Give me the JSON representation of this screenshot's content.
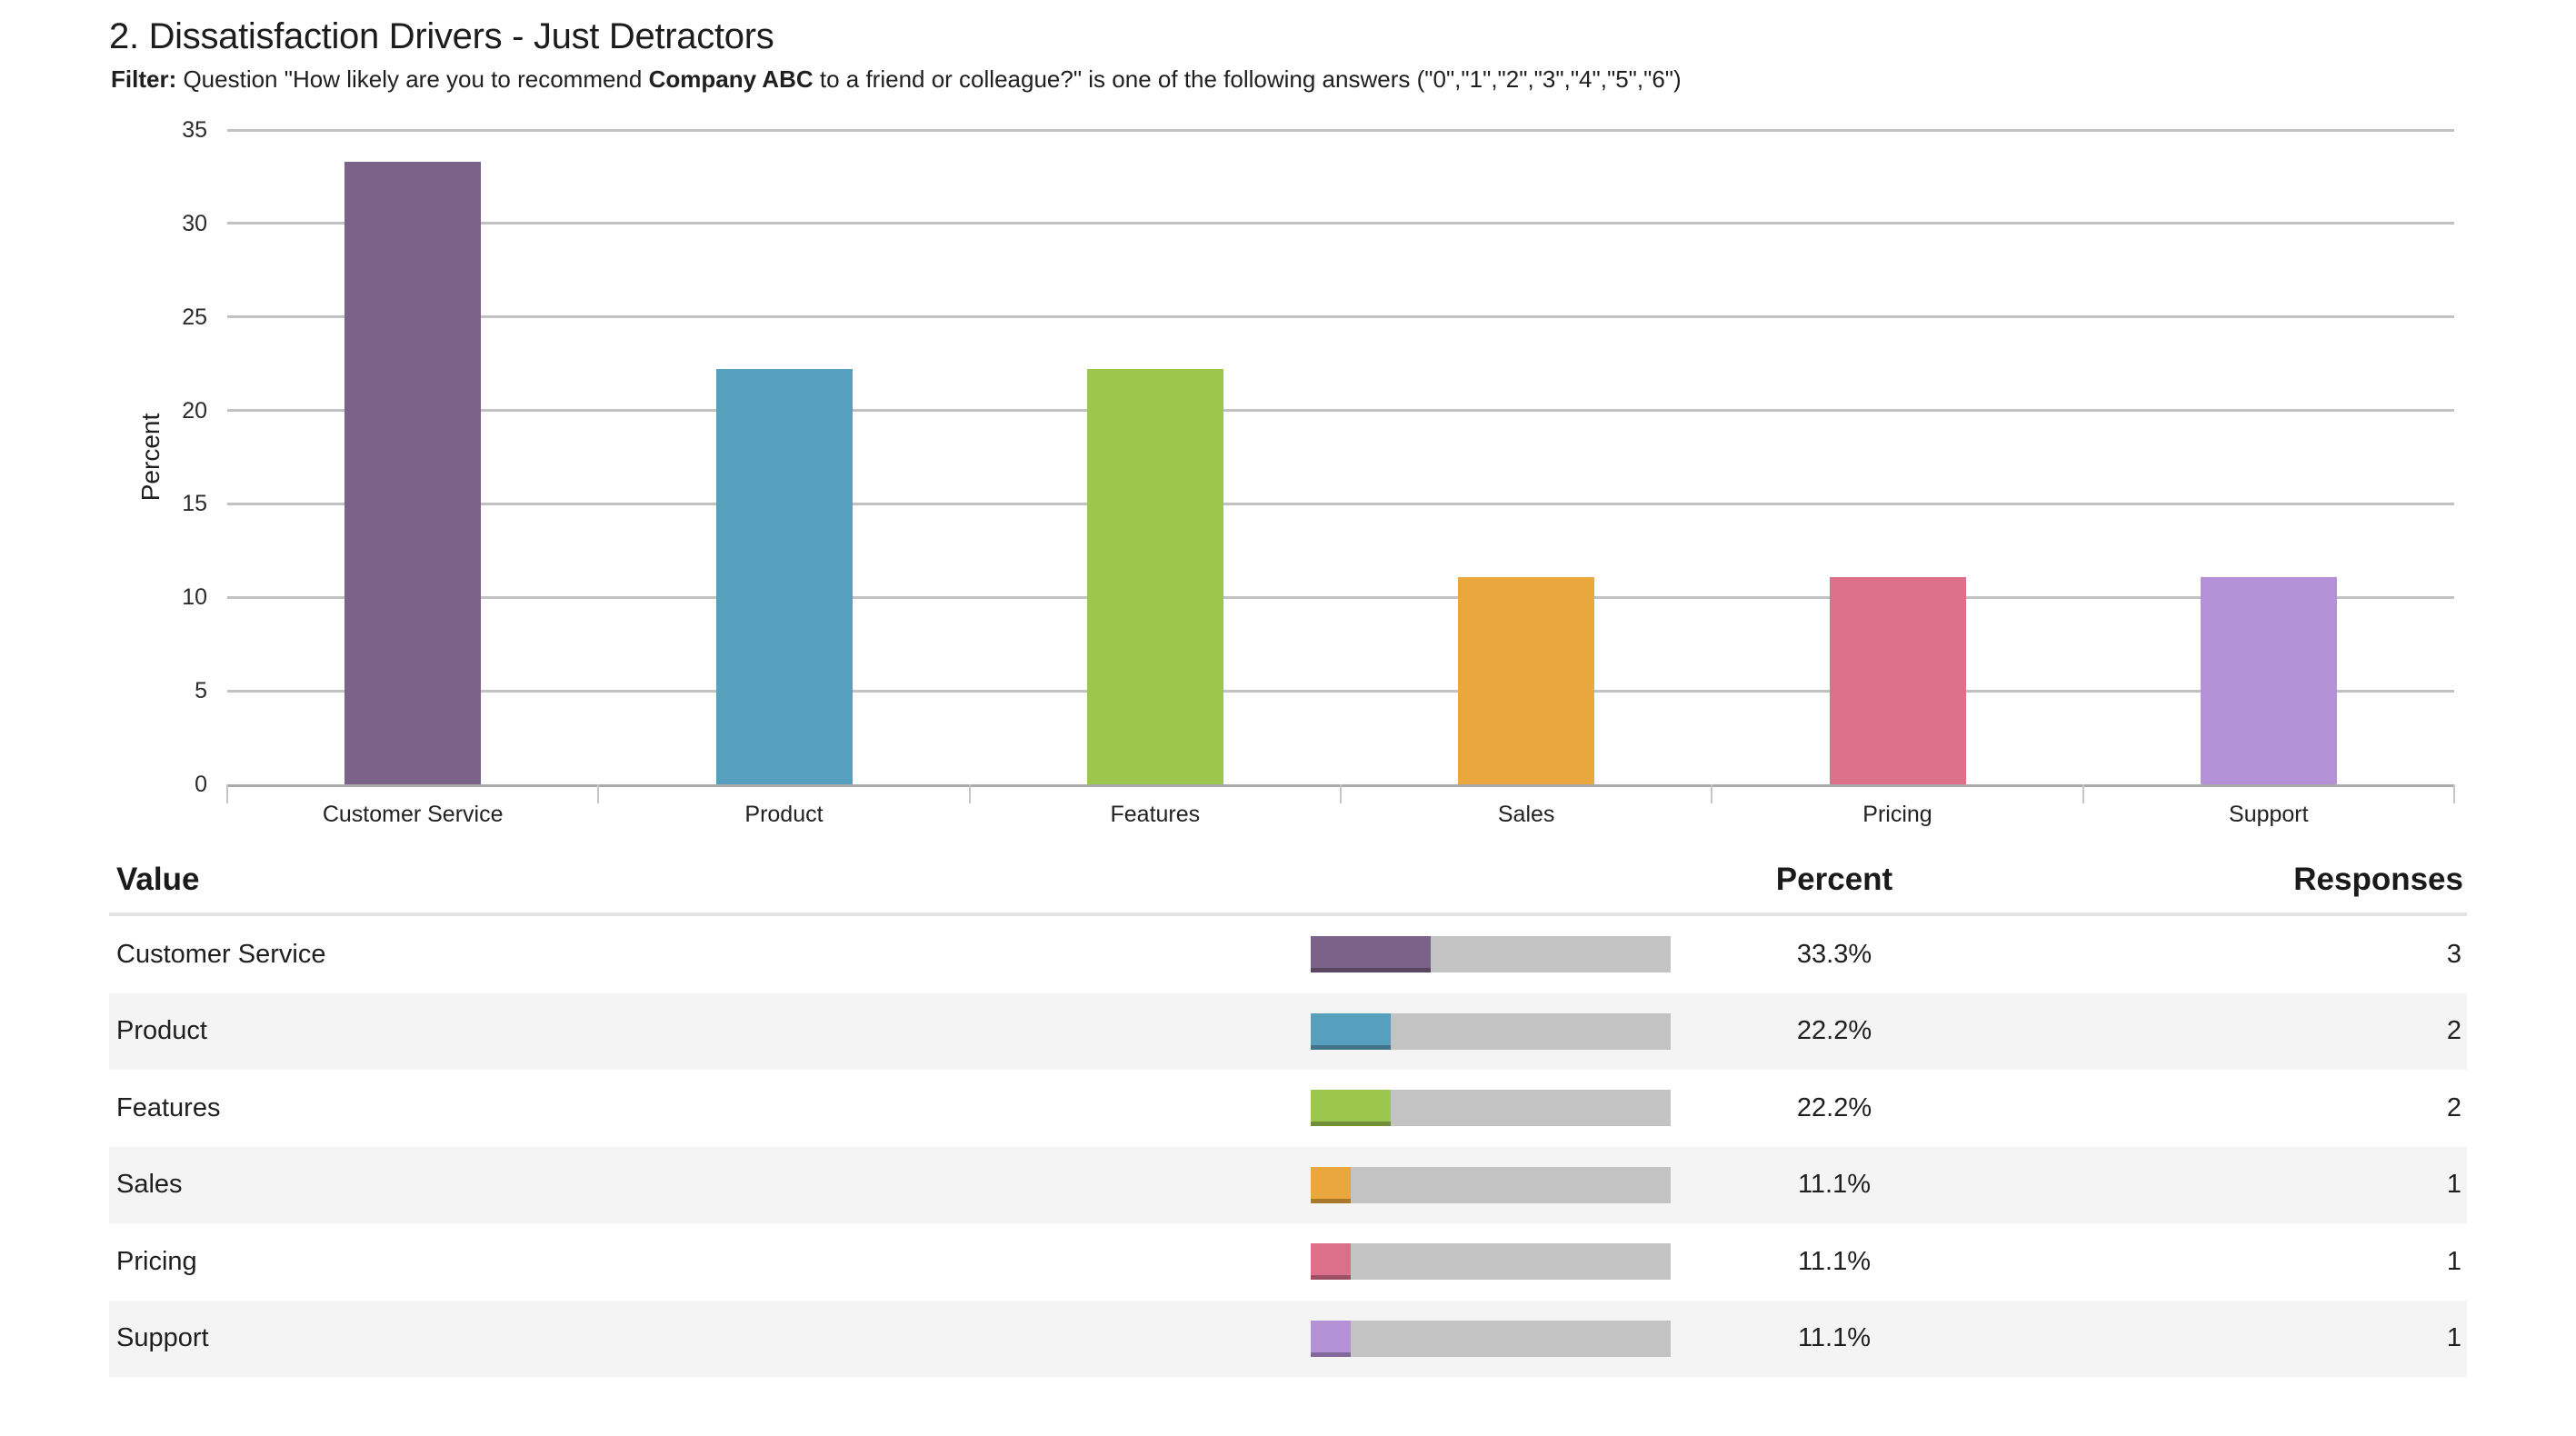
{
  "page": {
    "title": "2. Dissatisfaction Drivers - Just Detractors",
    "filter": {
      "label": "Filter:",
      "before_bold": " Question \"How likely are you to recommend ",
      "bold": "Company ABC",
      "after_bold": " to a friend or colleague?\" is one of the following answers (\"0\",\"1\",\"2\",\"3\",\"4\",\"5\",\"6\")"
    }
  },
  "chart_data": {
    "type": "bar",
    "title": "",
    "xlabel": "",
    "ylabel": "Percent",
    "categories": [
      "Customer Service",
      "Product",
      "Features",
      "Sales",
      "Pricing",
      "Support"
    ],
    "values": [
      33.3,
      22.2,
      22.2,
      11.1,
      11.1,
      11.1
    ],
    "bar_colors": [
      "#7A6289",
      "#57A0BD",
      "#9CC74E",
      "#E9A73E",
      "#DC6F89",
      "#B592D7"
    ],
    "ylim": [
      0,
      35
    ],
    "yticks": [
      0,
      5,
      10,
      15,
      20,
      25,
      30,
      35
    ],
    "grid": true,
    "legend_position": "none"
  },
  "table": {
    "headers": {
      "value": "Value",
      "percent": "Percent",
      "responses": "Responses"
    },
    "rows": [
      {
        "value": "Customer Service",
        "percent": "33.3%",
        "bar_percent": 33.3,
        "responses": "3",
        "color": "#7A6289"
      },
      {
        "value": "Product",
        "percent": "22.2%",
        "bar_percent": 22.2,
        "responses": "2",
        "color": "#57A0BD"
      },
      {
        "value": "Features",
        "percent": "22.2%",
        "bar_percent": 22.2,
        "responses": "2",
        "color": "#9CC74E"
      },
      {
        "value": "Sales",
        "percent": "11.1%",
        "bar_percent": 11.1,
        "responses": "1",
        "color": "#E9A73E"
      },
      {
        "value": "Pricing",
        "percent": "11.1%",
        "bar_percent": 11.1,
        "responses": "1",
        "color": "#DC6F89"
      },
      {
        "value": "Support",
        "percent": "11.1%",
        "bar_percent": 11.1,
        "responses": "1",
        "color": "#B592D7"
      }
    ],
    "track_color": "#C3C3C3",
    "alt_row_color": "#F4F4F4"
  }
}
